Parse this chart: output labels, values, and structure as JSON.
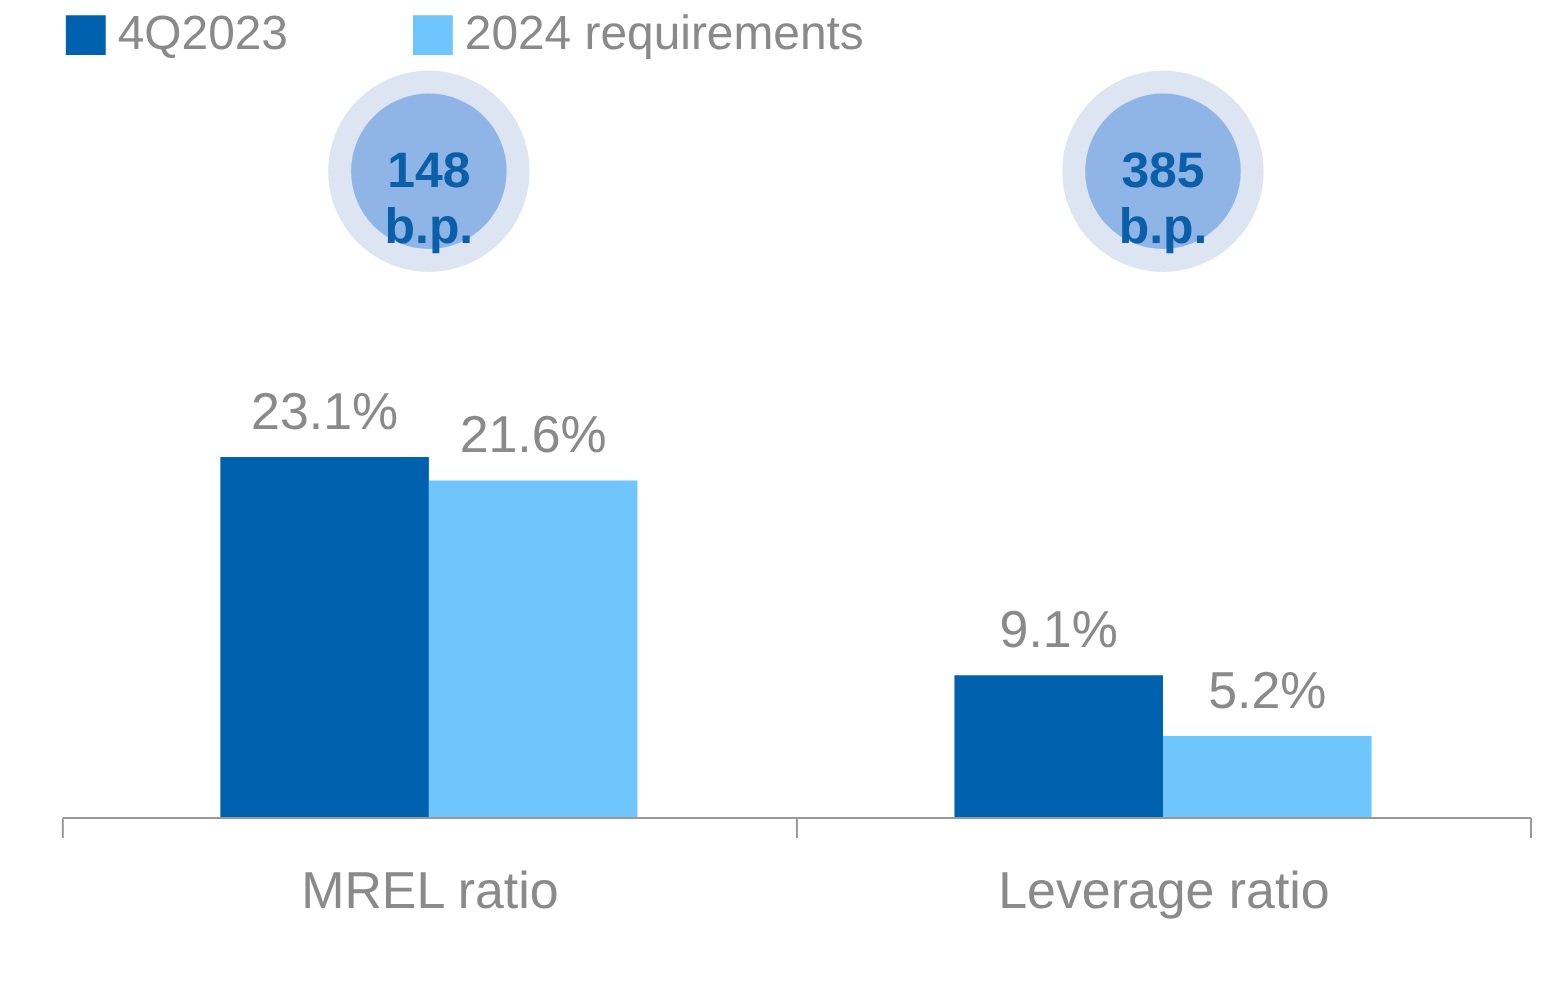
{
  "chart_data": {
    "type": "bar",
    "categories": [
      "MREL ratio",
      "Leverage ratio"
    ],
    "series": [
      {
        "name": "4Q2023",
        "color": "#0062ae",
        "values": [
          23.1,
          9.1
        ],
        "value_labels": [
          "23.1%",
          "9.1%"
        ]
      },
      {
        "name": "2024 requirements",
        "color": "#6fc6fd",
        "values": [
          21.6,
          5.2
        ],
        "value_labels": [
          "21.6%",
          "5.2%"
        ]
      }
    ],
    "legend": "top",
    "grid": false,
    "annotations": [
      "148\nb.p.",
      "385\nb.p."
    ]
  }
}
